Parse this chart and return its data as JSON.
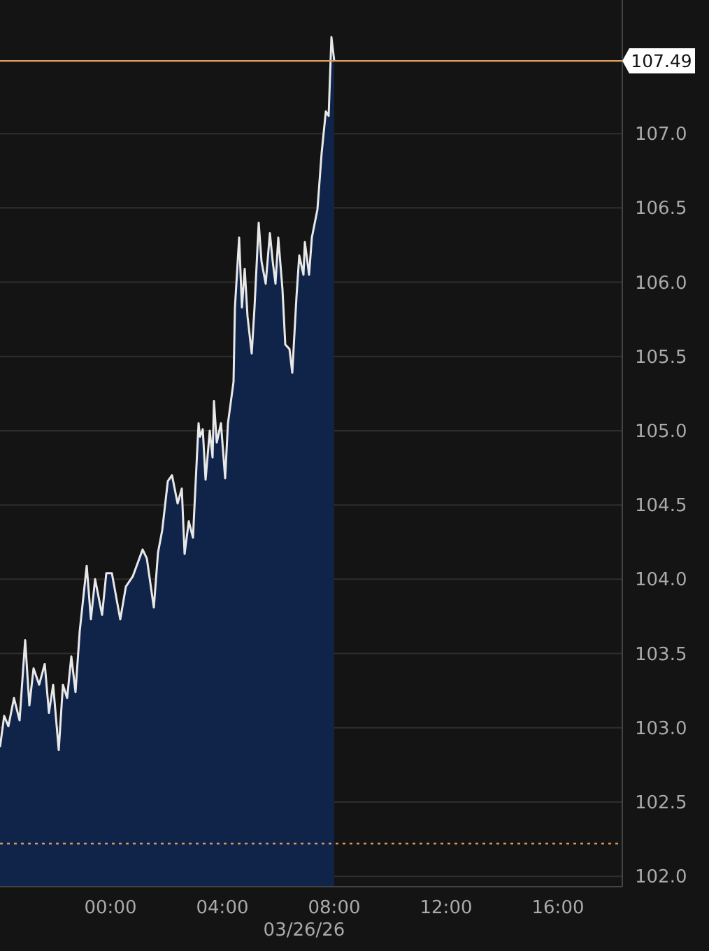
{
  "chart_data": {
    "type": "area",
    "x": [
      -3.95,
      -3.8,
      -3.65,
      -3.45,
      -3.25,
      -3.05,
      -2.9,
      -2.75,
      -2.55,
      -2.35,
      -2.2,
      -2.05,
      -1.85,
      -1.7,
      -1.55,
      -1.4,
      -1.25,
      -1.1,
      -0.85,
      -0.7,
      -0.55,
      -0.3,
      -0.15,
      0.05,
      0.35,
      0.55,
      0.8,
      1.15,
      1.3,
      1.55,
      1.7,
      1.85,
      2.05,
      2.2,
      2.4,
      2.55,
      2.65,
      2.8,
      2.95,
      3.05,
      3.15,
      3.2,
      3.3,
      3.4,
      3.55,
      3.65,
      3.7,
      3.8,
      3.95,
      4.1,
      4.2,
      4.4,
      4.45,
      4.6,
      4.7,
      4.8,
      4.9,
      5.05,
      5.15,
      5.3,
      5.4,
      5.55,
      5.7,
      5.8,
      5.9,
      6.0,
      6.15,
      6.25,
      6.4,
      6.5,
      6.65,
      6.75,
      6.9,
      6.95,
      7.1,
      7.2,
      7.4,
      7.55,
      7.7,
      7.8,
      7.9,
      8.0
    ],
    "series": [
      {
        "color": "#e8e8e8",
        "values": [
          102.87,
          103.08,
          103.01,
          103.2,
          103.05,
          103.59,
          103.15,
          103.4,
          103.29,
          103.43,
          103.1,
          103.29,
          102.85,
          103.29,
          103.2,
          103.48,
          103.24,
          103.65,
          104.09,
          103.73,
          104.0,
          103.76,
          104.04,
          104.04,
          103.73,
          103.95,
          104.02,
          104.2,
          104.14,
          103.81,
          104.18,
          104.33,
          104.66,
          104.7,
          104.51,
          104.61,
          104.17,
          104.39,
          104.28,
          104.67,
          105.05,
          104.96,
          105.01,
          104.67,
          105.0,
          104.82,
          105.2,
          104.92,
          105.05,
          104.68,
          105.05,
          105.33,
          105.83,
          106.3,
          105.83,
          106.09,
          105.77,
          105.52,
          105.83,
          106.4,
          106.14,
          105.99,
          106.33,
          106.14,
          105.99,
          106.3,
          105.95,
          105.58,
          105.55,
          105.39,
          105.9,
          106.18,
          106.05,
          106.27,
          106.05,
          106.3,
          106.49,
          106.87,
          107.15,
          107.12,
          107.65,
          107.49
        ]
      }
    ],
    "xlim": [
      -3.95,
      18.3
    ],
    "xticks": [
      {
        "value": 0,
        "label": "00:00"
      },
      {
        "value": 4,
        "label": "04:00"
      },
      {
        "value": 8,
        "label": "08:00"
      },
      {
        "value": 12,
        "label": "12:00"
      },
      {
        "value": 16,
        "label": "16:00"
      }
    ],
    "ylim": [
      101.93,
      107.9
    ],
    "yticks": [
      {
        "value": 102,
        "label": "102.0"
      },
      102.5,
      {
        "value": 103,
        "label": "103.0"
      },
      103.5,
      {
        "value": 104,
        "label": "104.0"
      },
      104.5,
      {
        "value": 105,
        "label": "105.0"
      },
      105.5,
      {
        "value": 106,
        "label": "106.0"
      },
      106.5,
      {
        "value": 107,
        "label": "107.0"
      }
    ],
    "grid": "y",
    "ref_lines": [
      {
        "axis": "y",
        "value": 107.49,
        "label": "107.49",
        "color": "#e0a060",
        "line_style": "solid"
      },
      {
        "axis": "y",
        "value": 102.22,
        "label": null,
        "color": "#e0a060",
        "line_style": "dotted"
      }
    ],
    "annotations": [
      "03/26/26"
    ]
  }
}
